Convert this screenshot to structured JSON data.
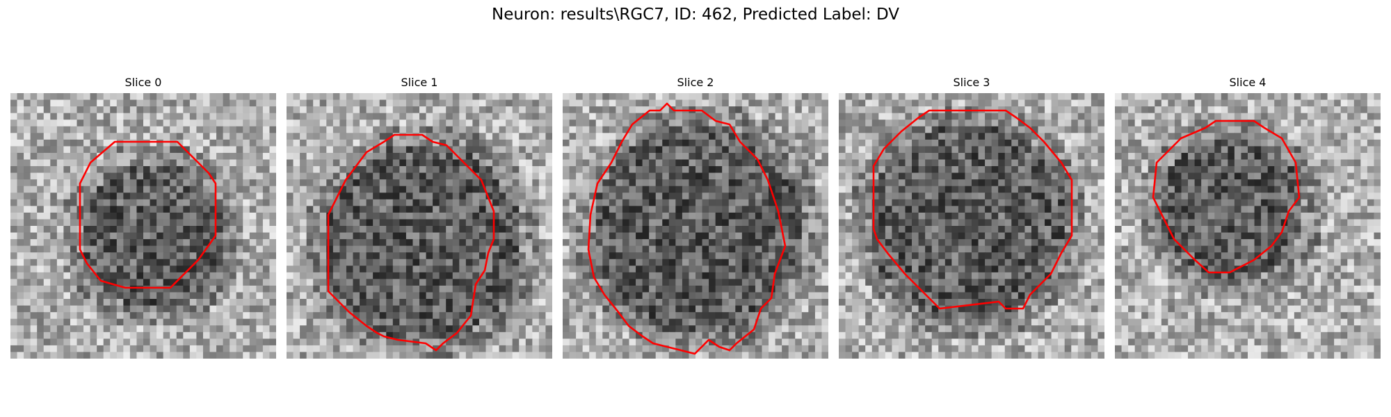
{
  "figure": {
    "title": "Neuron: results\\RGC7, ID: 462, Predicted Label: DV"
  },
  "contour_color": "#ff0000",
  "colormap": "gray",
  "panels": [
    {
      "title": "Slice 0"
    },
    {
      "title": "Slice 1"
    },
    {
      "title": "Slice 2"
    },
    {
      "title": "Slice 3"
    },
    {
      "title": "Slice 4"
    }
  ]
}
